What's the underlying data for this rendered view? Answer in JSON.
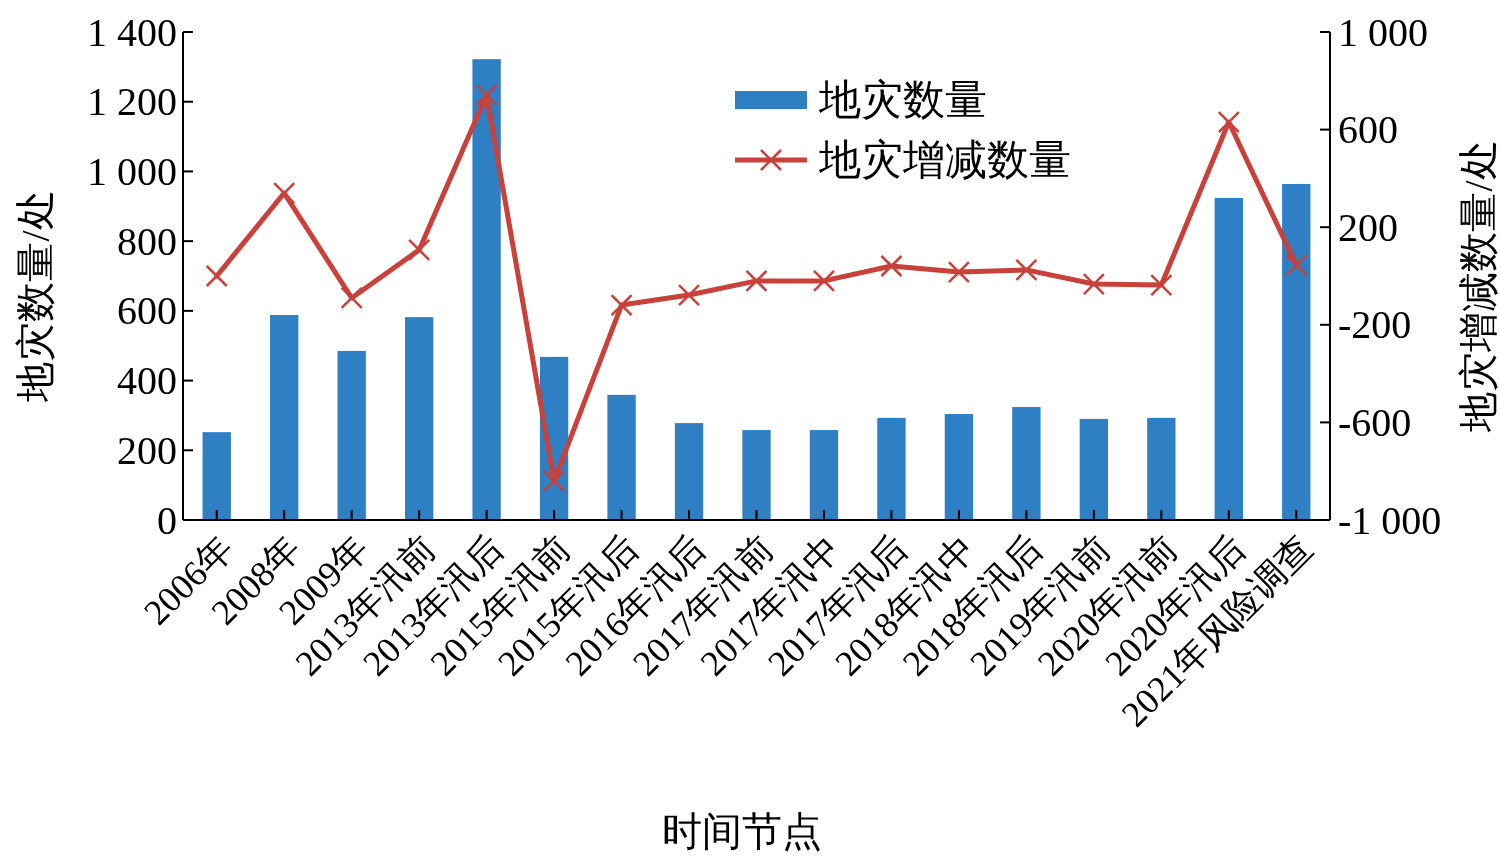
{
  "chart_data": {
    "type": "bar",
    "xlabel": "时间节点",
    "ylabel": "地灾数量/处",
    "y2label": "地灾增减数量/处",
    "categories": [
      "2006年",
      "2008年",
      "2009年",
      "2013年汛前",
      "2013年汛后",
      "2015年汛前",
      "2015年汛后",
      "2016年汛后",
      "2017年汛前",
      "2017年汛中",
      "2017年汛后",
      "2018年汛中",
      "2018年汛后",
      "2019年汛前",
      "2020年汛前",
      "2020年汛后",
      "2021年风险调查"
    ],
    "series": [
      {
        "name": "地灾数量",
        "color": "#2e7fc4",
        "values": [
          252,
          588,
          485,
          582,
          1322,
          468,
          359,
          278,
          258,
          258,
          293,
          304,
          324,
          290,
          293,
          924,
          964
        ]
      },
      {
        "name": "地灾增减数量",
        "type": "line",
        "axis": "y2",
        "color": "#c8413a",
        "marker": "cross",
        "values": [
          0,
          340,
          -90,
          107,
          742,
          -840,
          -119,
          -78,
          -20,
          -20,
          41,
          16,
          25,
          -33,
          -37,
          631,
          45
        ]
      }
    ],
    "ylim": [
      0,
      1400
    ],
    "yticks": [
      0,
      200,
      400,
      600,
      800,
      {
        "value": 1000,
        "label": "1 000"
      },
      {
        "value": 1200,
        "label": "1 200"
      },
      {
        "value": 1400,
        "label": "1 400"
      }
    ],
    "y2lim": [
      -1000,
      1000
    ],
    "y2ticks": [
      {
        "value": -1000,
        "label": "-1 000"
      },
      -600,
      -200,
      200,
      600,
      {
        "value": 1000,
        "label": "1 000"
      }
    ],
    "legend": "top",
    "grid": false
  }
}
